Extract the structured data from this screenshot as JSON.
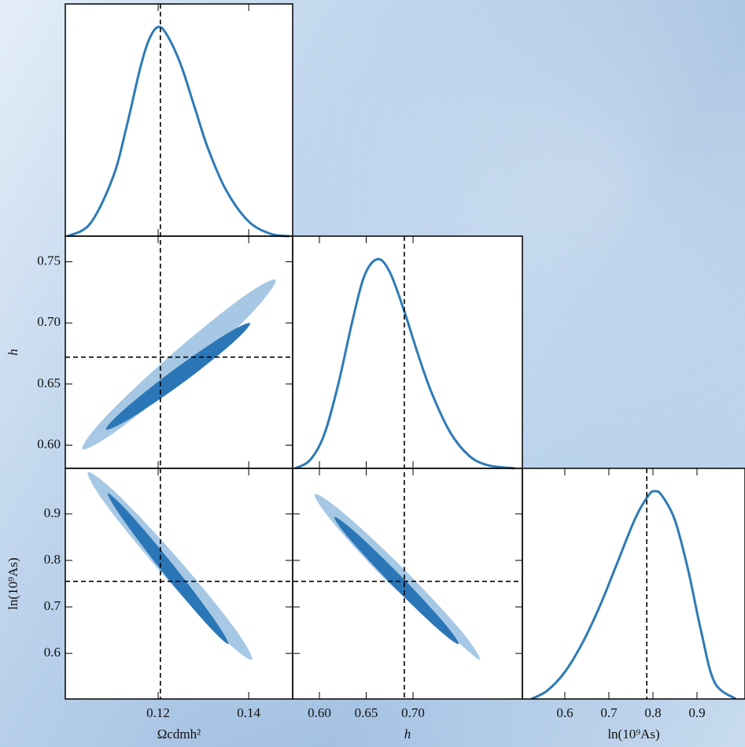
{
  "chart_data": {
    "type": "corner",
    "parameters": [
      {
        "label": "Ωcdmh²",
        "xlim": [
          0.0995,
          0.1497
        ],
        "xticks": [
          0.12,
          0.14
        ],
        "truth_x": 0.1205,
        "marginal": {
          "color": "#2e7ab6",
          "ylim": [
            0,
            1.11
          ],
          "x": [
            0.1,
            0.105,
            0.11,
            0.113,
            0.116,
            0.118,
            0.12,
            0.122,
            0.125,
            0.128,
            0.131,
            0.135,
            0.14,
            0.145,
            0.149
          ],
          "values": [
            0.0,
            0.06,
            0.28,
            0.52,
            0.8,
            0.94,
            1.0,
            0.96,
            0.82,
            0.62,
            0.42,
            0.22,
            0.07,
            0.01,
            0.0
          ]
        }
      },
      {
        "label": "h",
        "xlim": [
          0.5714,
          0.8168
        ],
        "xticks": [
          {
            "value": 0.6,
            "label": "0.60"
          },
          0.65,
          {
            "value": 0.7,
            "label": "0.70"
          }
        ],
        "truth_x": 0.6907,
        "ylim": [
          0.581,
          0.771
        ],
        "yticks": [
          {
            "value": 0.6,
            "label": "0.60"
          },
          0.65,
          {
            "value": 0.7,
            "label": "0.70"
          },
          0.75
        ],
        "truth_y": 0.672,
        "marginal": {
          "color": "#2e7ab6",
          "ylim": [
            0,
            1.11
          ],
          "x": [
            0.574,
            0.59,
            0.605,
            0.62,
            0.635,
            0.648,
            0.662,
            0.675,
            0.69,
            0.705,
            0.72,
            0.74,
            0.76,
            0.78,
            0.809
          ],
          "values": [
            0,
            0.04,
            0.16,
            0.4,
            0.7,
            0.92,
            1.0,
            0.94,
            0.76,
            0.55,
            0.36,
            0.17,
            0.06,
            0.015,
            0
          ]
        },
        "contours": [
          {
            "levels": [
              {
                "color": "#a6c8e4",
                "x": [
                  0.1459,
                  0.141,
                  0.1265,
                  0.1108,
                  0.1033,
                  0.1082,
                  0.1228,
                  0.1384
                ],
                "y": [
                  0.7353,
                  0.7094,
                  0.6582,
                  0.6116,
                  0.5967,
                  0.6225,
                  0.6737,
                  0.7204
                ]
              },
              {
                "color": "#2b76b6",
                "x": [
                  0.1403,
                  0.1364,
                  0.1255,
                  0.1139,
                  0.1085,
                  0.1125,
                  0.1234,
                  0.135
                ],
                "y": [
                  0.6998,
                  0.6834,
                  0.6511,
                  0.6219,
                  0.6128,
                  0.6292,
                  0.6615,
                  0.6908
                ]
              }
            ]
          }
        ]
      },
      {
        "label": "ln(10⁹As)",
        "xlim": [
          0.5036,
          1.009
        ],
        "xticks": [
          0.6,
          0.7,
          0.8,
          0.9
        ],
        "truth_x": 0.786,
        "ylim": [
          0.502,
          0.998
        ],
        "yticks": [
          0.6,
          0.7,
          0.8,
          0.9
        ],
        "truth_y": 0.755,
        "marginal": {
          "color": "#2e7ab6",
          "ylim": [
            0,
            1.11
          ],
          "x": [
            0.524,
            0.56,
            0.6,
            0.64,
            0.68,
            0.72,
            0.76,
            0.79,
            0.804,
            0.82,
            0.85,
            0.88,
            0.91,
            0.94,
            0.988
          ],
          "values": [
            0,
            0.04,
            0.13,
            0.27,
            0.45,
            0.66,
            0.87,
            0.98,
            1.0,
            0.98,
            0.86,
            0.62,
            0.32,
            0.08,
            0
          ]
        },
        "contours": [
          {
            "levels": [
              {
                "color": "#a6c8e4",
                "x": [
                  0.1407,
                  0.1367,
                  0.1244,
                  0.1111,
                  0.1045,
                  0.1085,
                  0.1208,
                  0.1341
                ],
                "y": [
                  0.5864,
                  0.6566,
                  0.8037,
                  0.9417,
                  0.9898,
                  0.9197,
                  0.7725,
                  0.6346
                ]
              },
              {
                "color": "#2b76b6",
                "x": [
                  0.1355,
                  0.1323,
                  0.1233,
                  0.1136,
                  0.1089,
                  0.1121,
                  0.1211,
                  0.1308
                ],
                "y": [
                  0.6203,
                  0.6742,
                  0.7907,
                  0.902,
                  0.9441,
                  0.8902,
                  0.7737,
                  0.6624
                ]
              }
            ]
          },
          {
            "levels": [
              {
                "color": "#a6c8e4",
                "x": [
                  0.7714,
                  0.751,
                  0.6909,
                  0.6263,
                  0.595,
                  0.6154,
                  0.6755,
                  0.7401
                ],
                "y": [
                  0.5864,
                  0.6497,
                  0.78,
                  0.9012,
                  0.9424,
                  0.8792,
                  0.7488,
                  0.6378
                ]
              },
              {
                "color": "#2b76b6",
                "x": [
                  0.7487,
                  0.7327,
                  0.6871,
                  0.6387,
                  0.616,
                  0.632,
                  0.6776,
                  0.726
                ],
                "y": [
                  0.6203,
                  0.6669,
                  0.7662,
                  0.8602,
                  0.8932,
                  0.8466,
                  0.7473,
                  0.6534
                ]
              }
            ]
          }
        ]
      }
    ]
  }
}
